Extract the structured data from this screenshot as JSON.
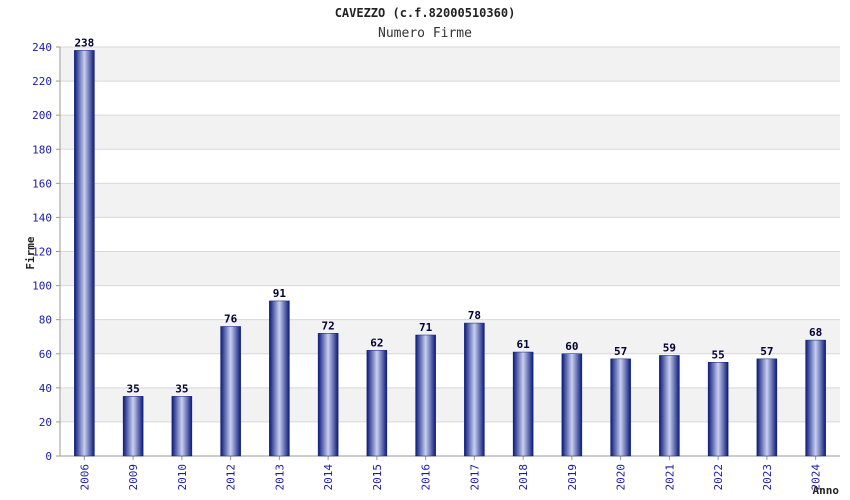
{
  "chart_data": {
    "type": "bar",
    "title": "CAVEZZO (c.f.82000510360)",
    "subtitle": "Numero Firme",
    "xlabel": "Anno",
    "ylabel": "Firme",
    "categories": [
      "2006",
      "2009",
      "2010",
      "2012",
      "2013",
      "2014",
      "2015",
      "2016",
      "2017",
      "2018",
      "2019",
      "2020",
      "2021",
      "2022",
      "2023",
      "2024"
    ],
    "series": [
      {
        "values": [
          238,
          35,
          35,
          76,
          91,
          72,
          62,
          71,
          78,
          61,
          60,
          57,
          59,
          55,
          57,
          68
        ]
      }
    ],
    "ylim": [
      0,
      240
    ],
    "yticks": [
      0,
      20,
      40,
      60,
      80,
      100,
      120,
      140,
      160,
      180,
      200,
      220,
      240
    ],
    "grid": true,
    "colors": {
      "bar_dark": "#0a1a7a",
      "bar_light": "#c9cff0",
      "tick_text": "#1a1aa6",
      "band": "#f2f2f2",
      "grid": "#d8d8d8",
      "value_label": "#000033"
    }
  }
}
